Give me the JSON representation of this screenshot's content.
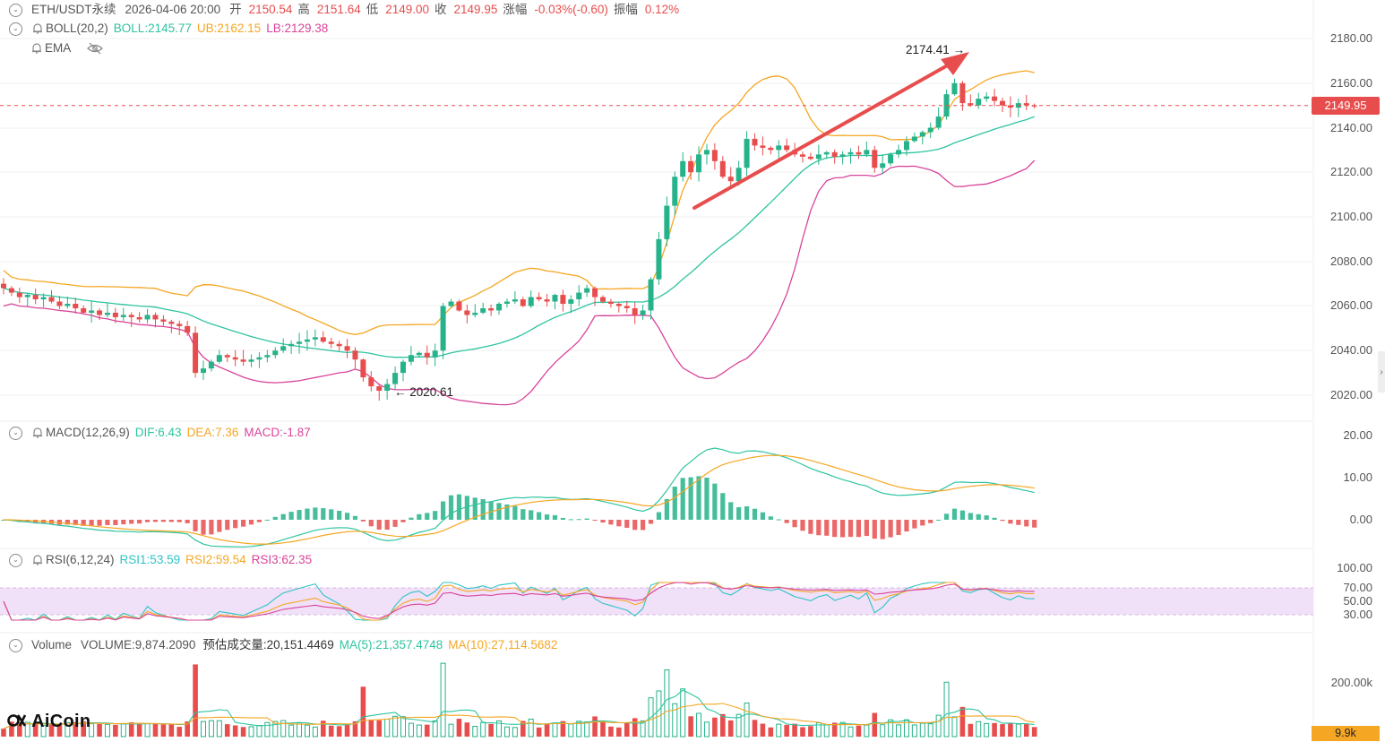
{
  "header": {
    "symbol": "ETH/USDT永续",
    "datetime": "2026-04-06 20:00",
    "open_label": "开",
    "open": "2150.54",
    "high_label": "高",
    "high": "2151.64",
    "low_label": "低",
    "low": "2149.00",
    "close_label": "收",
    "close": "2149.95",
    "change_label": "涨幅",
    "change": "-0.03%(-0.60)",
    "amplitude_label": "振幅",
    "amplitude": "0.12%"
  },
  "boll": {
    "name": "BOLL(20,2)",
    "boll": "BOLL:2145.77",
    "ub": "UB:2162.15",
    "lb": "LB:2129.38"
  },
  "ema": {
    "name": "EMA"
  },
  "macd": {
    "name": "MACD(12,26,9)",
    "dif": "DIF:6.43",
    "dea": "DEA:7.36",
    "macd": "MACD:-1.87"
  },
  "rsi": {
    "name": "RSI(6,12,24)",
    "rsi1": "RSI1:53.59",
    "rsi2": "RSI2:59.54",
    "rsi3": "RSI3:62.35"
  },
  "volume": {
    "name": "Volume",
    "volume": "VOLUME:9,874.2090",
    "estimate": "预估成交量:20,151.4469",
    "ma5": "MA(5):21,357.4748",
    "ma10": "MA(10):27,114.5682"
  },
  "price_axis": [
    "2180.00",
    "2160.00",
    "2140.00",
    "2120.00",
    "2100.00",
    "2080.00",
    "2060.00",
    "2040.00",
    "2020.00"
  ],
  "macd_axis": [
    "20.00",
    "10.00",
    "0.00"
  ],
  "rsi_axis": [
    "100.00",
    "70.00",
    "50.00",
    "30.00"
  ],
  "volume_axis": [
    "200.00k"
  ],
  "current_price_tag": "2149.95",
  "current_volume_tag": "9.9k",
  "annotations": {
    "high": "2174.41",
    "low": "2020.61"
  },
  "logo": {
    "text": "AiCoin"
  },
  "colors": {
    "up": "#26b28a",
    "down": "#e84d4d",
    "boll_mid": "#2ec4a0",
    "boll_upper": "#f5a623",
    "boll_lower": "#d9449a",
    "rsi1": "#2ec4c4",
    "rsi2": "#f5a623",
    "rsi3": "#d9449a",
    "rsi_band": "#f0e0f8",
    "arrow": "#e84d4d"
  },
  "chart_data": {
    "type": "candlestick",
    "y_range": [
      2012,
      2190
    ],
    "close_series": [
      2068,
      2066,
      2064,
      2065,
      2063,
      2064,
      2062,
      2060,
      2061,
      2059,
      2057,
      2058,
      2056,
      2057,
      2055,
      2056,
      2055,
      2054,
      2056,
      2054,
      2053,
      2052,
      2051,
      2048,
      2030,
      2032,
      2035,
      2038,
      2037,
      2036,
      2035,
      2036,
      2037,
      2038,
      2040,
      2042,
      2043,
      2044,
      2045,
      2046,
      2044,
      2043,
      2042,
      2040,
      2036,
      2028,
      2024,
      2022,
      2025,
      2030,
      2035,
      2038,
      2039,
      2037,
      2040,
      2060,
      2062,
      2058,
      2056,
      2057,
      2059,
      2058,
      2061,
      2062,
      2063,
      2060,
      2064,
      2063,
      2062,
      2065,
      2061,
      2063,
      2066,
      2068,
      2064,
      2062,
      2061,
      2060,
      2059,
      2056,
      2058,
      2072,
      2090,
      2105,
      2118,
      2125,
      2120,
      2128,
      2130,
      2125,
      2118,
      2116,
      2122,
      2135,
      2132,
      2131,
      2130,
      2132,
      2130,
      2128,
      2127,
      2126,
      2128,
      2129,
      2127,
      2128,
      2129,
      2128,
      2130,
      2122,
      2124,
      2128,
      2130,
      2134,
      2136,
      2138,
      2140,
      2145,
      2155,
      2160,
      2151,
      2150,
      2153,
      2154,
      2152,
      2150,
      2149,
      2151,
      2150,
      2149.95
    ],
    "highlights": {
      "high": 2174.41,
      "low": 2020.61,
      "current": 2149.95
    }
  }
}
